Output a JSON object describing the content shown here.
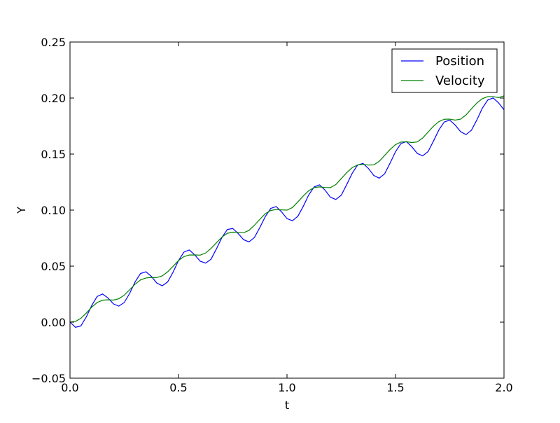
{
  "chart_data": {
    "type": "line",
    "title": "",
    "xlabel": "t",
    "ylabel": "Y",
    "xlim": [
      0.0,
      2.0
    ],
    "ylim": [
      -0.05,
      0.25
    ],
    "grid": false,
    "legend_position": "top-right",
    "x_ticks": [
      0.0,
      0.5,
      1.0,
      1.5,
      2.0
    ],
    "x_tick_labels": [
      "0.0",
      "0.5",
      "1.0",
      "1.5",
      "2.0"
    ],
    "y_ticks": [
      -0.05,
      0.0,
      0.05,
      0.1,
      0.15,
      0.2,
      0.25
    ],
    "y_tick_labels": [
      "−0.05",
      "0.00",
      "0.05",
      "0.10",
      "0.15",
      "0.20",
      "0.25"
    ],
    "series": [
      {
        "name": "Position",
        "color": "#0000ff",
        "x": [
          0.0,
          0.025,
          0.05,
          0.075,
          0.1,
          0.125,
          0.15,
          0.175,
          0.2,
          0.225,
          0.25,
          0.275,
          0.3,
          0.325,
          0.35,
          0.375,
          0.4,
          0.425,
          0.45,
          0.475,
          0.5,
          0.525,
          0.55,
          0.575,
          0.6,
          0.625,
          0.65,
          0.675,
          0.7,
          0.725,
          0.75,
          0.775,
          0.8,
          0.825,
          0.85,
          0.875,
          0.9,
          0.925,
          0.95,
          0.975,
          1.0,
          1.025,
          1.05,
          1.075,
          1.1,
          1.125,
          1.15,
          1.175,
          1.2,
          1.225,
          1.25,
          1.275,
          1.3,
          1.325,
          1.35,
          1.375,
          1.4,
          1.425,
          1.45,
          1.475,
          1.5,
          1.525,
          1.55,
          1.575,
          1.6,
          1.625,
          1.65,
          1.675,
          1.7,
          1.725,
          1.75,
          1.775,
          1.8,
          1.825,
          1.85,
          1.875,
          1.9,
          1.925,
          1.95,
          1.975,
          2.0
        ],
        "y": [
          0.0,
          -0.0046,
          -0.0034,
          0.0046,
          0.0148,
          0.0229,
          0.0251,
          0.0216,
          0.0163,
          0.0143,
          0.0175,
          0.0257,
          0.0359,
          0.0434,
          0.045,
          0.0408,
          0.0349,
          0.0325,
          0.0359,
          0.0446,
          0.055,
          0.0625,
          0.0644,
          0.06,
          0.0544,
          0.0527,
          0.0562,
          0.0655,
          0.0755,
          0.0827,
          0.0836,
          0.0791,
          0.0736,
          0.0716,
          0.0756,
          0.0845,
          0.0942,
          0.1015,
          0.1032,
          0.0984,
          0.0924,
          0.0905,
          0.0945,
          0.1034,
          0.1135,
          0.1207,
          0.1225,
          0.1179,
          0.1115,
          0.1095,
          0.1133,
          0.1227,
          0.1327,
          0.1401,
          0.1417,
          0.1372,
          0.1309,
          0.1285,
          0.1324,
          0.1419,
          0.1521,
          0.1594,
          0.1611,
          0.1566,
          0.1506,
          0.1484,
          0.1522,
          0.1616,
          0.1716,
          0.1787,
          0.1803,
          0.1759,
          0.17,
          0.1674,
          0.1713,
          0.1805,
          0.1909,
          0.1982,
          0.2001,
          0.1957,
          0.1895
        ]
      },
      {
        "name": "Velocity",
        "color": "#008000",
        "x": [
          0.0,
          0.025,
          0.05,
          0.075,
          0.1,
          0.125,
          0.15,
          0.175,
          0.2,
          0.225,
          0.25,
          0.275,
          0.3,
          0.325,
          0.35,
          0.375,
          0.4,
          0.425,
          0.45,
          0.475,
          0.5,
          0.525,
          0.55,
          0.575,
          0.6,
          0.625,
          0.65,
          0.675,
          0.7,
          0.725,
          0.75,
          0.775,
          0.8,
          0.825,
          0.85,
          0.875,
          0.9,
          0.925,
          0.95,
          0.975,
          1.0,
          1.025,
          1.05,
          1.075,
          1.1,
          1.125,
          1.15,
          1.175,
          1.2,
          1.225,
          1.25,
          1.275,
          1.3,
          1.325,
          1.35,
          1.375,
          1.4,
          1.425,
          1.45,
          1.475,
          1.5,
          1.525,
          1.55,
          1.575,
          1.6,
          1.625,
          1.65,
          1.675,
          1.7,
          1.725,
          1.75,
          1.775,
          1.8,
          1.825,
          1.85,
          1.875,
          1.9,
          1.925,
          1.95,
          1.975,
          2.0
        ],
        "y": [
          0.0,
          0.0006,
          0.0034,
          0.0081,
          0.0134,
          0.0175,
          0.0196,
          0.0199,
          0.0197,
          0.0209,
          0.0241,
          0.0289,
          0.0339,
          0.0377,
          0.0394,
          0.0399,
          0.0398,
          0.0413,
          0.0449,
          0.0498,
          0.055,
          0.0585,
          0.0599,
          0.06,
          0.0598,
          0.0617,
          0.0658,
          0.0709,
          0.0759,
          0.0793,
          0.0803,
          0.0802,
          0.0798,
          0.0819,
          0.0865,
          0.0918,
          0.0968,
          0.0997,
          0.1005,
          0.1002,
          0.1,
          0.1023,
          0.1073,
          0.1126,
          0.1173,
          0.1201,
          0.1207,
          0.1202,
          0.1201,
          0.1228,
          0.1281,
          0.1334,
          0.1378,
          0.1403,
          0.1408,
          0.1402,
          0.1404,
          0.1436,
          0.1488,
          0.1541,
          0.1584,
          0.1607,
          0.161,
          0.1603,
          0.1608,
          0.1643,
          0.1696,
          0.1749,
          0.179,
          0.1811,
          0.1812,
          0.1803,
          0.1812,
          0.1849,
          0.1904,
          0.1956,
          0.1994,
          0.2013,
          0.2013,
          0.2004,
          0.2019
        ]
      }
    ]
  }
}
